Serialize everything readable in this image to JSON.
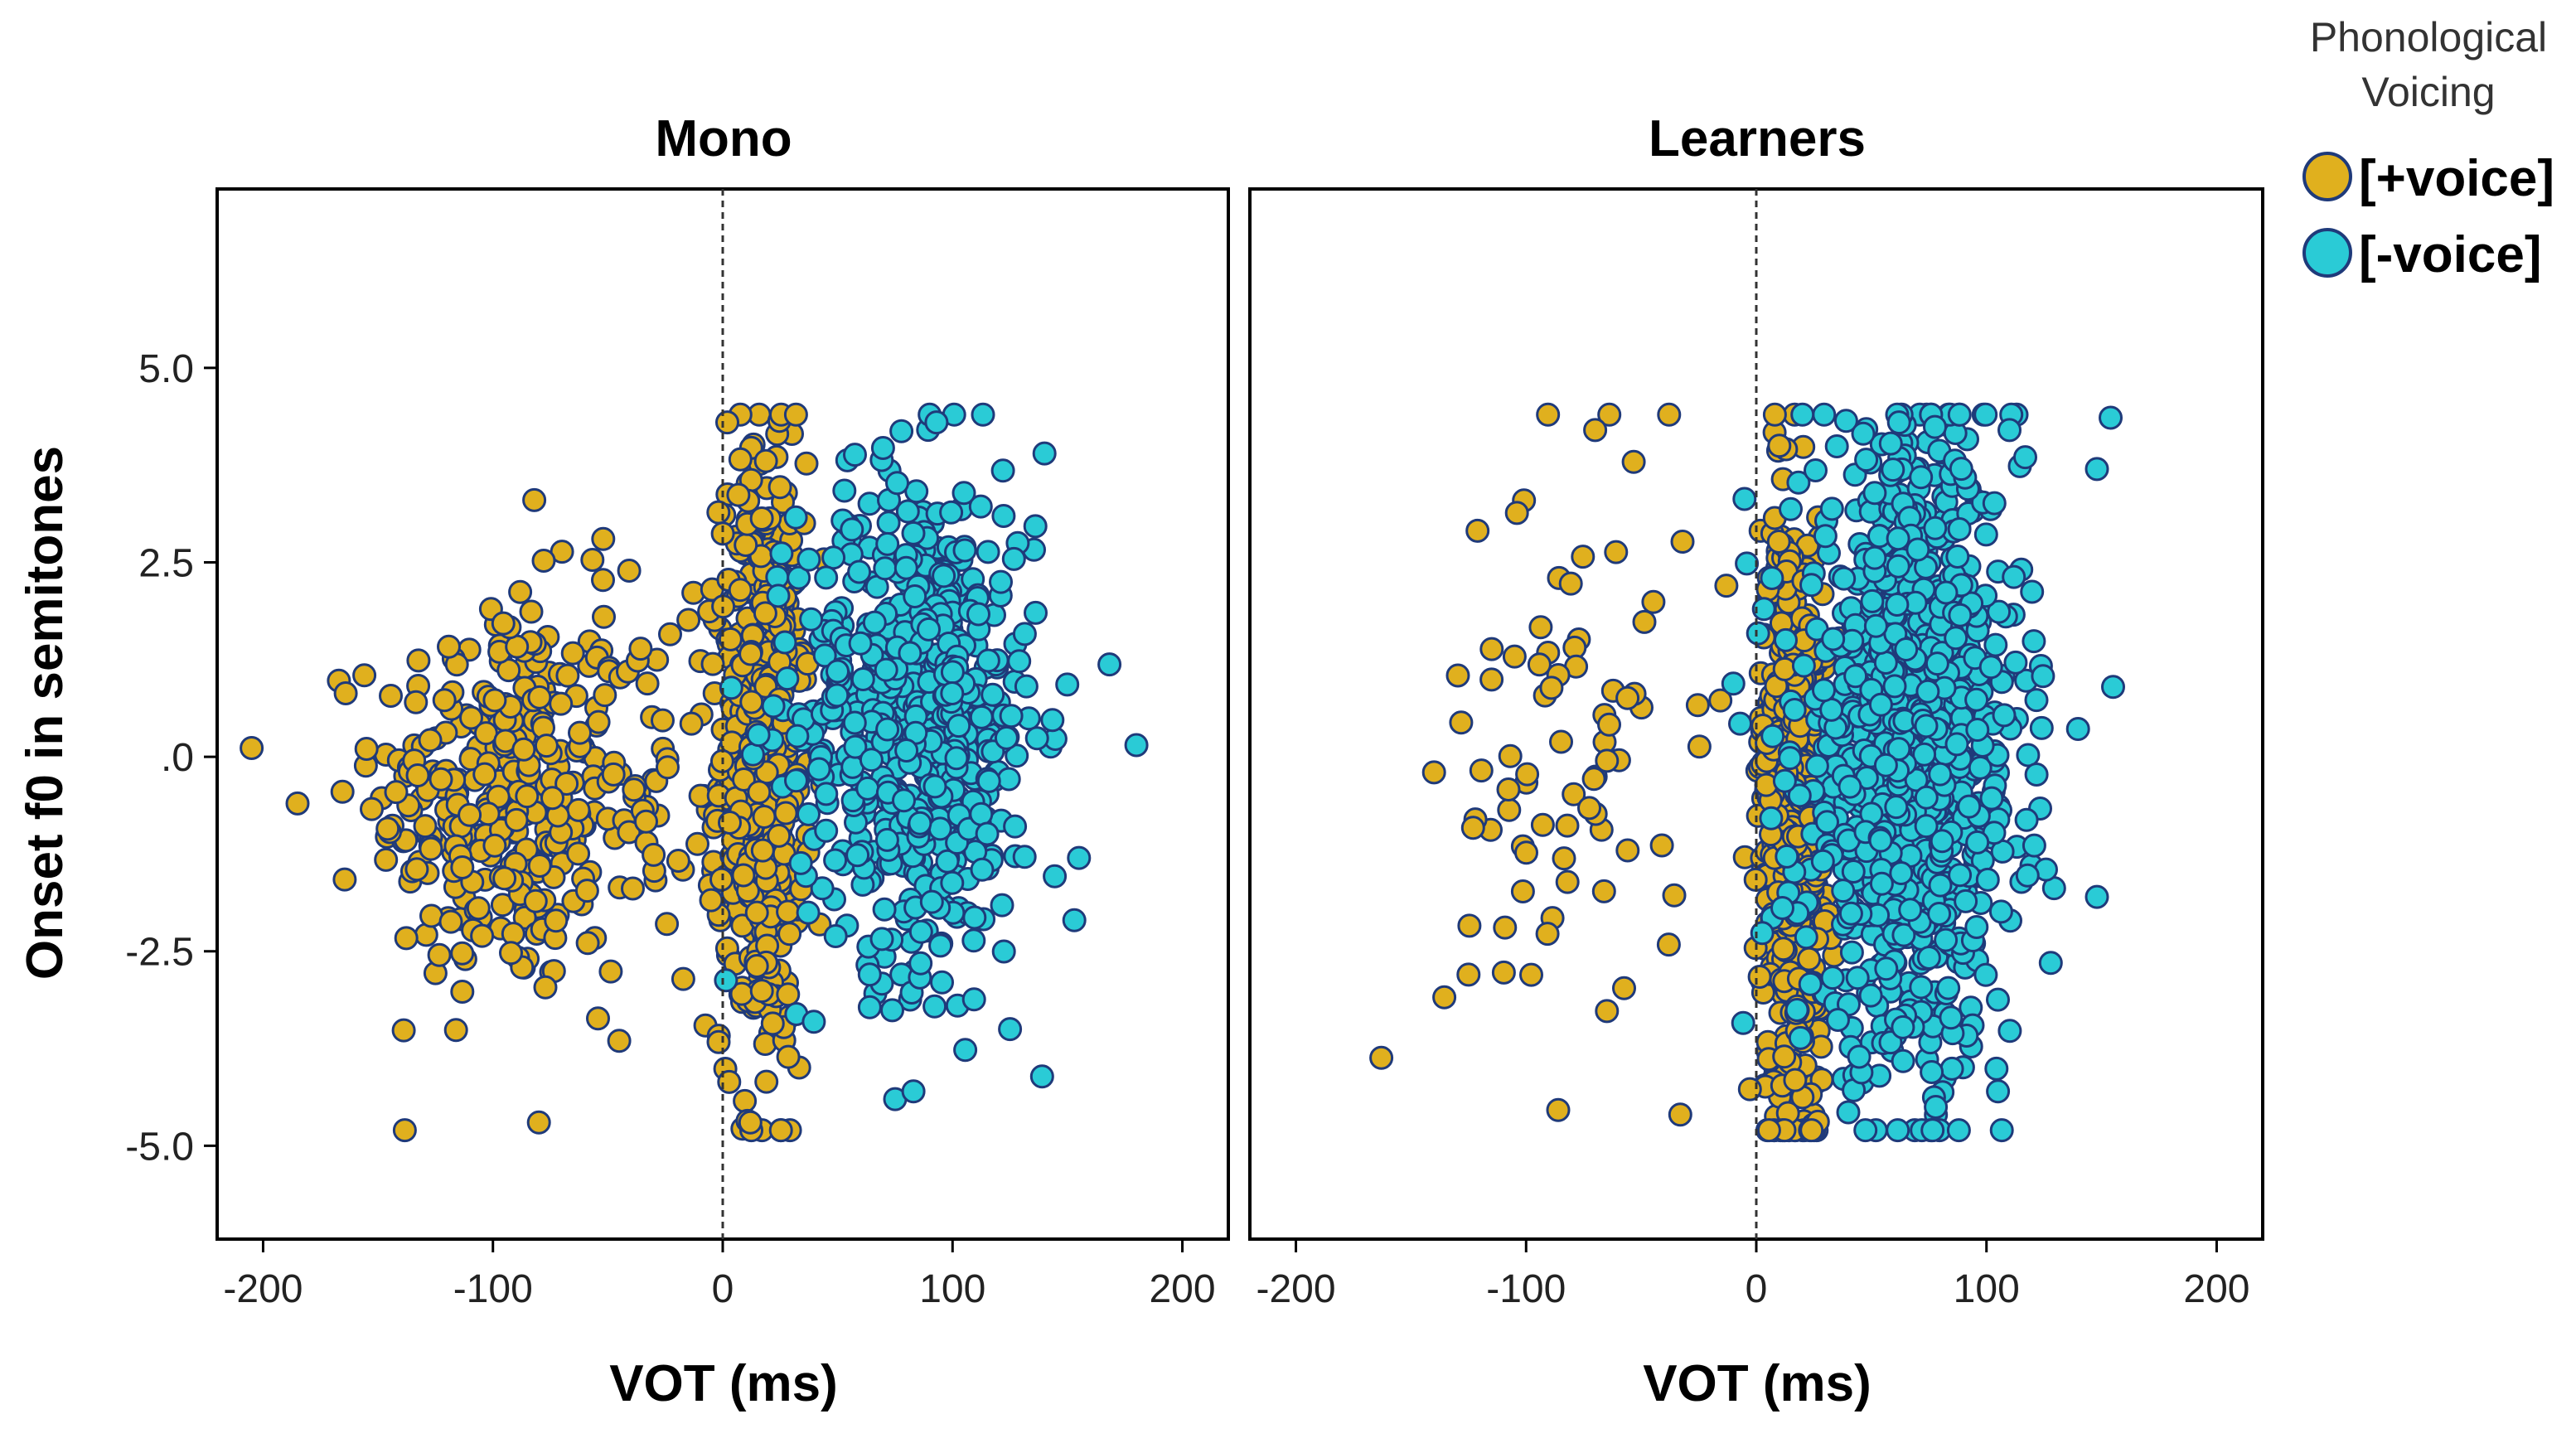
{
  "chart_data": {
    "type": "scatter",
    "ylabel": "Onset f0 in semitones",
    "xlabel": "VOT (ms)",
    "xlim": [
      -220,
      220
    ],
    "ylim": [
      -6.2,
      7.3
    ],
    "xticks": [
      -200,
      -100,
      0,
      100,
      200
    ],
    "xtick_labels": [
      "-200",
      "-100",
      "0",
      "100",
      "200"
    ],
    "yticks": [
      5.0,
      2.5,
      0.0,
      -2.5,
      -5.0
    ],
    "ytick_labels": [
      "5.0",
      "2.5",
      ".0",
      "-2.5",
      "-5.0"
    ],
    "reference_line_x": 0,
    "legend": {
      "title": "Phonological Voicing",
      "title_lines": [
        "Phonological",
        "Voicing"
      ],
      "entries": [
        {
          "label": "[+voice]",
          "color": "#E0B01E"
        },
        {
          "label": "[-voice]",
          "color": "#2ACBD6"
        }
      ]
    },
    "marker_edge_color": "#1F3A7A",
    "panels": [
      {
        "title": "Mono",
        "series": [
          {
            "name": "[+voice]",
            "color": "#E0B01E",
            "clusters": [
              {
                "n": 320,
                "x_mean": -95,
                "x_sd": 28,
                "y_mean": -0.5,
                "y_sd": 1.3
              },
              {
                "n": 60,
                "x_mean": -25,
                "x_sd": 18,
                "y_mean": -0.5,
                "y_sd": 1.6
              },
              {
                "n": 520,
                "x_mean": 17,
                "x_sd": 9,
                "y_mean": 0.0,
                "y_sd": 1.9
              }
            ],
            "points": [
              {
                "x": -82,
                "y": 3.3
              },
              {
                "x": -80,
                "y": -4.7
              },
              {
                "x": -52,
                "y": 2.8
              },
              {
                "x": 2,
                "y": 4.3
              },
              {
                "x": -185,
                "y": -0.6
              },
              {
                "x": 12,
                "y": -4.7
              }
            ]
          },
          {
            "name": "[-voice]",
            "color": "#2ACBD6",
            "clusters": [
              {
                "n": 600,
                "x_mean": 85,
                "x_sd": 26,
                "y_mean": 0.5,
                "y_sd": 1.6
              }
            ],
            "points": [
              {
                "x": 180,
                "y": 0.15
              },
              {
                "x": 93,
                "y": 4.3
              },
              {
                "x": 75,
                "y": -4.4
              },
              {
                "x": 83,
                "y": -4.3
              },
              {
                "x": 140,
                "y": 3.9
              },
              {
                "x": 125,
                "y": -3.5
              },
              {
                "x": 155,
                "y": -1.3
              },
              {
                "x": 153,
                "y": -2.1
              }
            ]
          }
        ]
      },
      {
        "title": "Learners",
        "series": [
          {
            "name": "[+voice]",
            "color": "#E0B01E",
            "clusters": [
              {
                "n": 80,
                "x_mean": -80,
                "x_sd": 28,
                "y_mean": 0.0,
                "y_sd": 2.1
              },
              {
                "n": 620,
                "x_mean": 16,
                "x_sd": 7,
                "y_mean": -0.8,
                "y_sd": 2.0
              }
            ],
            "points": [
              {
                "x": -70,
                "y": 4.2
              },
              {
                "x": -13,
                "y": 2.2
              },
              {
                "x": -33,
                "y": -4.6
              },
              {
                "x": -140,
                "y": -0.2
              },
              {
                "x": -125,
                "y": -2.8
              },
              {
                "x": 10,
                "y": 4.0
              }
            ]
          },
          {
            "name": "[-voice]",
            "color": "#2ACBD6",
            "clusters": [
              {
                "n": 1000,
                "x_mean": 67,
                "x_sd": 24,
                "y_mean": 0.0,
                "y_sd": 2.0
              }
            ],
            "points": [
              {
                "x": 148,
                "y": 3.7
              },
              {
                "x": 155,
                "y": 0.9
              },
              {
                "x": 148,
                "y": -1.8
              },
              {
                "x": 78,
                "y": -4.5
              },
              {
                "x": 105,
                "y": -4.3
              },
              {
                "x": 110,
                "y": 4.2
              },
              {
                "x": 62,
                "y": 4.3
              }
            ]
          }
        ]
      }
    ]
  }
}
